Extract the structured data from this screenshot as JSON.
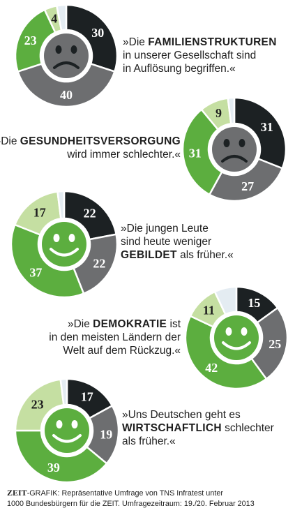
{
  "colors": {
    "dark": "#1c2123",
    "gray": "#6d6e70",
    "green": "#5cae3f",
    "lightgreen": "#c5dfa2",
    "noanswer": "#e4ecf2",
    "face_gray": "#6d6e70",
    "face_green": "#5cae3f"
  },
  "chart_data": [
    {
      "type": "pie",
      "statement_pre": "»Die ",
      "statement_kw": "FAMILIENSTRUKTUREN",
      "statement_post": " in unserer Gesellschaft sind in Auflösung begriffen.«",
      "lines": [
        {
          "pre": "»Die ",
          "kw": "FAMILIENSTRUKTUREN",
          "post": ""
        },
        {
          "pre": "in unserer Gesellschaft sind",
          "kw": "",
          "post": ""
        },
        {
          "pre": "in Auflösung begriffen.«",
          "kw": "",
          "post": ""
        }
      ],
      "face": "sad",
      "slices": [
        {
          "key": "dark",
          "value": 30,
          "label": "30"
        },
        {
          "key": "gray",
          "value": 40,
          "label": "40"
        },
        {
          "key": "green",
          "value": 23,
          "label": "23"
        },
        {
          "key": "lightgreen",
          "value": 4,
          "label": "4"
        },
        {
          "key": "noanswer",
          "value": 3,
          "label": ""
        }
      ]
    },
    {
      "type": "pie",
      "lines": [
        {
          "pre": "»Die ",
          "kw": "GESUNDHEITSVERSORGUNG",
          "post": ""
        },
        {
          "pre": "wird immer schlechter.«",
          "kw": "",
          "post": ""
        }
      ],
      "face": "sad",
      "slices": [
        {
          "key": "dark",
          "value": 31,
          "label": "31"
        },
        {
          "key": "gray",
          "value": 27,
          "label": "27"
        },
        {
          "key": "green",
          "value": 31,
          "label": "31"
        },
        {
          "key": "lightgreen",
          "value": 9,
          "label": "9"
        },
        {
          "key": "noanswer",
          "value": 2,
          "label": ""
        }
      ]
    },
    {
      "type": "pie",
      "lines": [
        {
          "pre": "»Die jungen Leute",
          "kw": "",
          "post": ""
        },
        {
          "pre": "sind heute weniger",
          "kw": "",
          "post": ""
        },
        {
          "pre": "",
          "kw": "GEBILDET",
          "post": " als früher.«"
        }
      ],
      "face": "happy",
      "slices": [
        {
          "key": "dark",
          "value": 22,
          "label": "22"
        },
        {
          "key": "gray",
          "value": 22,
          "label": "22"
        },
        {
          "key": "green",
          "value": 37,
          "label": "37"
        },
        {
          "key": "lightgreen",
          "value": 17,
          "label": "17"
        },
        {
          "key": "noanswer",
          "value": 2,
          "label": ""
        }
      ]
    },
    {
      "type": "pie",
      "lines": [
        {
          "pre": "»Die ",
          "kw": "DEMOKRATIE",
          "post": " ist"
        },
        {
          "pre": "in den meisten Ländern der",
          "kw": "",
          "post": ""
        },
        {
          "pre": "Welt auf dem Rückzug.«",
          "kw": "",
          "post": ""
        }
      ],
      "face": "happy",
      "slices": [
        {
          "key": "dark",
          "value": 15,
          "label": "15"
        },
        {
          "key": "gray",
          "value": 25,
          "label": "25"
        },
        {
          "key": "green",
          "value": 42,
          "label": "42"
        },
        {
          "key": "lightgreen",
          "value": 11,
          "label": "11"
        },
        {
          "key": "noanswer",
          "value": 7,
          "label": ""
        }
      ]
    },
    {
      "type": "pie",
      "lines": [
        {
          "pre": "»Uns Deutschen geht es",
          "kw": "",
          "post": ""
        },
        {
          "pre": "",
          "kw": "WIRTSCHAFTLICH",
          "post": " schlechter"
        },
        {
          "pre": "als früher.«",
          "kw": "",
          "post": ""
        }
      ],
      "face": "happy",
      "slices": [
        {
          "key": "dark",
          "value": 17,
          "label": "17"
        },
        {
          "key": "gray",
          "value": 19,
          "label": "19"
        },
        {
          "key": "green",
          "value": 39,
          "label": "39"
        },
        {
          "key": "lightgreen",
          "value": 23,
          "label": "23"
        },
        {
          "key": "noanswer",
          "value": 2,
          "label": ""
        }
      ]
    }
  ],
  "footer": {
    "brand": "ZEIT",
    "line1": "-GRAFIK: Repräsentative Umfrage von TNS Infratest unter",
    "line2": "1000 Bundesbürgern für die ZEIT. Umfragezeitraum: 19./20. Februar 2013"
  }
}
